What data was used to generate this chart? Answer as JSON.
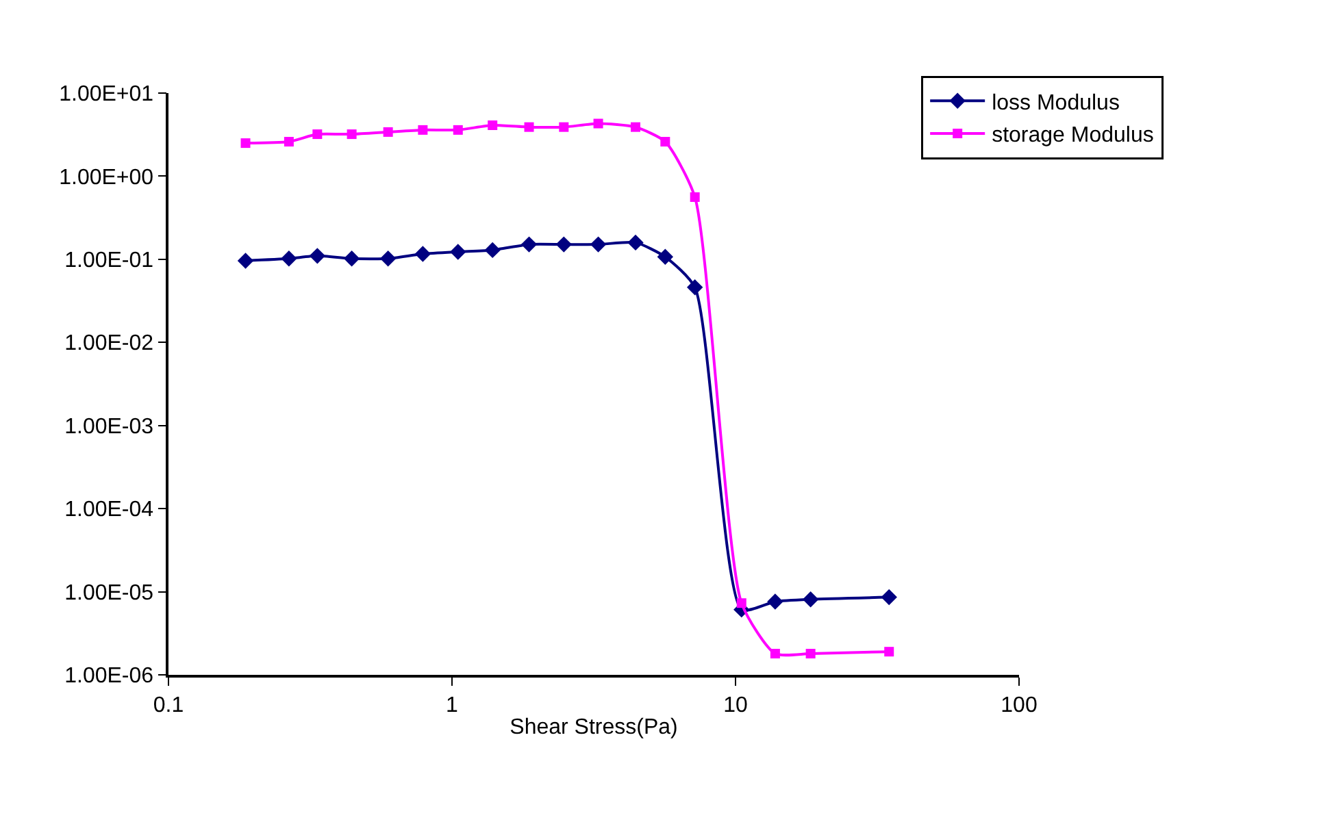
{
  "chart_data": {
    "type": "line",
    "xlabel": "Shear Stress(Pa)",
    "log": "xy",
    "grid": false,
    "legend": "top right",
    "line_style": "solid",
    "x": [
      0.187,
      0.266,
      0.335,
      0.443,
      0.595,
      0.789,
      1.05,
      1.39,
      1.87,
      2.48,
      3.28,
      4.44,
      5.65,
      7.19,
      10.5,
      13.8,
      18.4,
      34.8
    ],
    "xlim": [
      0.1,
      100
    ],
    "xticks": [
      0.1,
      1,
      10,
      100
    ],
    "ylim": [
      1e-06,
      10
    ],
    "yticks": [
      {
        "value": 10,
        "label": "1.00E+01"
      },
      {
        "value": 1,
        "label": "1.00E+00"
      },
      {
        "value": 0.1,
        "label": "1.00E-01"
      },
      {
        "value": 0.01,
        "label": "1.00E-02"
      },
      {
        "value": 0.001,
        "label": "1.00E-03"
      },
      {
        "value": 0.0001,
        "label": "1.00E-04"
      },
      {
        "value": 1e-05,
        "label": "1.00E-05"
      },
      {
        "value": 1e-06,
        "label": "1.00E-06"
      }
    ],
    "series": [
      {
        "name": "loss Modulus",
        "color": "#000080",
        "marker": "diamond",
        "values": [
          0.096,
          0.102,
          0.11,
          0.102,
          0.102,
          0.116,
          0.123,
          0.129,
          0.151,
          0.151,
          0.151,
          0.159,
          0.107,
          0.046,
          6.1e-06,
          7.6e-06,
          8.1e-06,
          8.6e-06
        ]
      },
      {
        "name": "storage Modulus",
        "color": "#ff00ff",
        "marker": "square",
        "values": [
          2.5,
          2.6,
          3.2,
          3.2,
          3.4,
          3.6,
          3.6,
          4.1,
          3.9,
          3.9,
          4.3,
          3.9,
          2.6,
          0.56,
          7.3e-06,
          1.8e-06,
          1.8e-06,
          1.9e-06
        ]
      }
    ]
  }
}
